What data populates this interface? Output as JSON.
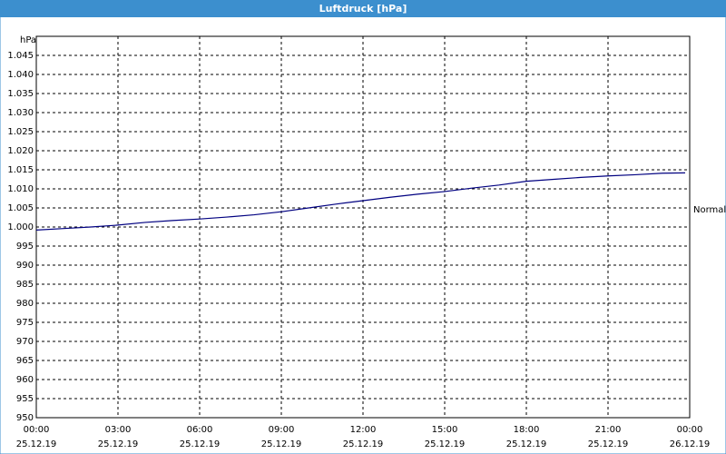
{
  "chart_data": {
    "type": "line",
    "title": "Luftdruck [hPa]",
    "y_label": "hPa",
    "x": [
      "2019-12-25T00:00",
      "2019-12-25T01:00",
      "2019-12-25T02:00",
      "2019-12-25T03:00",
      "2019-12-25T04:00",
      "2019-12-25T05:00",
      "2019-12-25T06:00",
      "2019-12-25T07:00",
      "2019-12-25T08:00",
      "2019-12-25T09:00",
      "2019-12-25T10:00",
      "2019-12-25T11:00",
      "2019-12-25T12:00",
      "2019-12-25T13:00",
      "2019-12-25T14:00",
      "2019-12-25T15:00",
      "2019-12-25T16:00",
      "2019-12-25T17:00",
      "2019-12-25T18:00",
      "2019-12-25T19:00",
      "2019-12-25T20:00",
      "2019-12-25T21:00",
      "2019-12-25T22:00",
      "2019-12-25T23:00",
      "2019-12-25T23:50"
    ],
    "series": [
      {
        "color": "#000080",
        "values": [
          999.2,
          999.6,
          1000.0,
          1000.5,
          1001.2,
          1001.7,
          1002.1,
          1002.6,
          1003.2,
          1004.0,
          1005.0,
          1006.0,
          1006.9,
          1007.8,
          1008.6,
          1009.3,
          1010.2,
          1011.0,
          1012.0,
          1012.5,
          1013.0,
          1013.4,
          1013.7,
          1014.1,
          1014.2
        ]
      }
    ],
    "xlim": [
      "2019-12-25T00:00",
      "2019-12-26T00:00"
    ],
    "xticks": [
      {
        "value": "2019-12-25T00:00",
        "label": "00:00"
      },
      {
        "value": "2019-12-25T03:00",
        "label": "03:00"
      },
      {
        "value": "2019-12-25T06:00",
        "label": "06:00"
      },
      {
        "value": "2019-12-25T09:00",
        "label": "09:00"
      },
      {
        "value": "2019-12-25T12:00",
        "label": "12:00"
      },
      {
        "value": "2019-12-25T15:00",
        "label": "15:00"
      },
      {
        "value": "2019-12-25T18:00",
        "label": "18:00"
      },
      {
        "value": "2019-12-25T21:00",
        "label": "21:00"
      },
      {
        "value": "2019-12-26T00:00",
        "label": "00:00"
      }
    ],
    "xtick_dates": [
      "25.12.19",
      "25.12.19",
      "25.12.19",
      "25.12.19",
      "25.12.19",
      "25.12.19",
      "25.12.19",
      "25.12.19",
      "26.12.19"
    ],
    "ylim": [
      950,
      1050
    ],
    "yticks": [
      950,
      955,
      960,
      965,
      970,
      975,
      980,
      985,
      990,
      995,
      {
        "value": 1000,
        "label": "1.000"
      },
      {
        "value": 1005,
        "label": "1.005"
      },
      {
        "value": 1010,
        "label": "1.010"
      },
      {
        "value": 1015,
        "label": "1.015"
      },
      {
        "value": 1020,
        "label": "1.020"
      },
      {
        "value": 1025,
        "label": "1.025"
      },
      {
        "value": 1030,
        "label": "1.030"
      },
      {
        "value": 1035,
        "label": "1.035"
      },
      {
        "value": 1040,
        "label": "1.040"
      },
      {
        "value": 1045,
        "label": "1.045"
      }
    ],
    "grid": true,
    "annotation": {
      "text": "Normal",
      "value": 1004.5
    }
  }
}
